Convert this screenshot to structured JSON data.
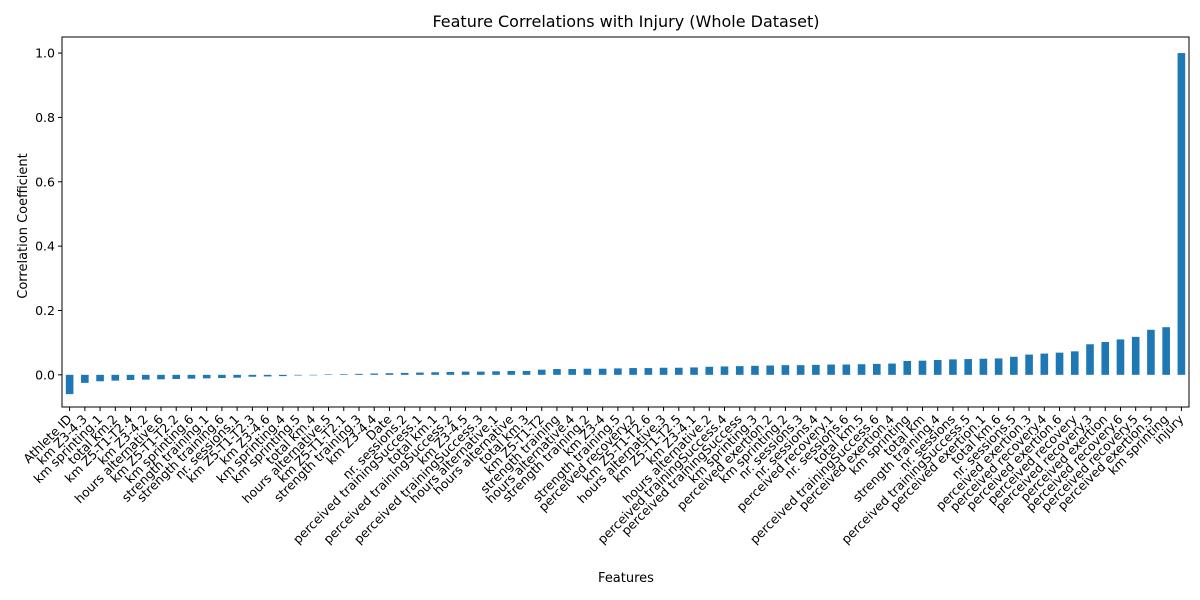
{
  "chart_data": {
    "type": "bar",
    "title": "Feature Correlations with Injury (Whole Dataset)",
    "xlabel": "Features",
    "ylabel": "Correlation Coefficient",
    "ylim": [
      -0.1,
      1.05
    ],
    "yticks": [
      "0.0",
      "0.2",
      "0.4",
      "0.6",
      "0.8",
      "1.0"
    ],
    "ytick_values": [
      0.0,
      0.2,
      0.4,
      0.6,
      0.8,
      1.0
    ],
    "grid": false,
    "bar_color": "#1f77b4",
    "categories": [
      "Athlete ID",
      "km Z3-4.3",
      "km sprinting.1",
      "total km.2",
      "km Z5-T1-T2.4",
      "km Z3-4.2",
      "hours alternative.6",
      "km Z5-T1-T2.2",
      "km sprinting.6",
      "strength training.1",
      "strength training.6",
      "nr. sessions.1",
      "km Z5-T1-T2.3",
      "km Z3-4.6",
      "km sprinting.4",
      "km sprinting.5",
      "total km.4",
      "hours alternative.5",
      "km Z5-T1-T2.1",
      "strength training.3",
      "km Z3-4.4",
      "Date",
      "nr. sessions.2",
      "perceived trainingSuccess.1",
      "total km.1",
      "perceived trainingSuccess.2",
      "km Z3-4.5",
      "perceived trainingSuccess.3",
      "hours alternative.1",
      "hours alternative",
      "total km.3",
      "km Z5-T1-T2",
      "strength training",
      "hours alternative.4",
      "strength training.2",
      "km Z3-4",
      "strength training.5",
      "perceived recovery.2",
      "km Z5-T1-T2.6",
      "hours alternative.3",
      "km Z5-T1-T2.5",
      "km Z3-4.1",
      "hours alternative.2",
      "perceived trainingSuccess.4",
      "perceived trainingSuccess",
      "km sprinting.3",
      "perceived exertion.2",
      "km sprinting.2",
      "nr. sessions.3",
      "nr. sessions.4",
      "perceived recovery.1",
      "nr. sessions.6",
      "total km.5",
      "perceived trainingSuccess.6",
      "perceived exertion.4",
      "km sprinting",
      "total km",
      "strength training.4",
      "nr. sessions",
      "perceived trainingSuccess.5",
      "perceived exertion.1",
      "total km.6",
      "nr. sessions.5",
      "perceived exertion.3",
      "perceived recovery.4",
      "perceived exertion.6",
      "perceived recovery",
      "perceived recovery.3",
      "perceived exertion",
      "perceived recovery.6",
      "perceived recovery.5",
      "perceived exertion.5",
      "km sprinting",
      "injury"
    ],
    "values": [
      -0.06,
      -0.025,
      -0.02,
      -0.018,
      -0.016,
      -0.015,
      -0.014,
      -0.013,
      -0.012,
      -0.011,
      -0.01,
      -0.009,
      -0.006,
      -0.005,
      -0.004,
      -0.002,
      -0.001,
      0.001,
      0.002,
      0.003,
      0.004,
      0.005,
      0.006,
      0.007,
      0.008,
      0.009,
      0.01,
      0.01,
      0.011,
      0.012,
      0.012,
      0.016,
      0.018,
      0.018,
      0.019,
      0.019,
      0.02,
      0.021,
      0.021,
      0.022,
      0.022,
      0.023,
      0.025,
      0.026,
      0.027,
      0.028,
      0.029,
      0.03,
      0.03,
      0.031,
      0.032,
      0.032,
      0.033,
      0.034,
      0.035,
      0.043,
      0.044,
      0.046,
      0.048,
      0.049,
      0.05,
      0.051,
      0.056,
      0.063,
      0.066,
      0.069,
      0.073,
      0.095,
      0.102,
      0.11,
      0.118,
      0.14,
      0.148,
      1.0
    ]
  }
}
